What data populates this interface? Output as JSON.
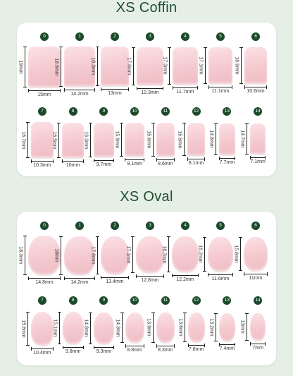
{
  "coffin": {
    "title": "XS Coffin",
    "nails": [
      {
        "num": "0",
        "h": "19mm",
        "w": "15mm"
      },
      {
        "num": "1",
        "h": "18.8mm",
        "w": "14.2mm"
      },
      {
        "num": "2",
        "h": "18.3mm",
        "w": "13mm"
      },
      {
        "num": "3",
        "h": "17.6mm",
        "w": "12.3mm"
      },
      {
        "num": "4",
        "h": "17.3mm",
        "w": "11.7mm"
      },
      {
        "num": "5",
        "h": "17.1mm",
        "w": "11.1mm"
      },
      {
        "num": "6",
        "h": "16.9mm",
        "w": "10.6mm"
      },
      {
        "num": "7",
        "h": "16.7mm",
        "w": "10.3mm"
      },
      {
        "num": "8",
        "h": "16.5mm",
        "w": "10mm"
      },
      {
        "num": "9",
        "h": "16.3mm",
        "w": "9.7mm"
      },
      {
        "num": "10",
        "h": "15.9mm",
        "w": "9.1mm"
      },
      {
        "num": "11",
        "h": "15.6mm",
        "w": "8.6mm"
      },
      {
        "num": "12",
        "h": "15.5mm",
        "w": "8.1mm"
      },
      {
        "num": "13",
        "h": "14.8mm",
        "w": "7.7mm"
      },
      {
        "num": "14",
        "h": "14.7mm",
        "w": "7.1mm"
      }
    ]
  },
  "oval": {
    "title": "XS Oval",
    "nails": [
      {
        "num": "0",
        "h": "18.3mm",
        "w": "14.8mm"
      },
      {
        "num": "1",
        "h": "18mm",
        "w": "14.2mm"
      },
      {
        "num": "2",
        "h": "17.6mm",
        "w": "13.4mm"
      },
      {
        "num": "3",
        "h": "17.1mm",
        "w": "12.8mm"
      },
      {
        "num": "4",
        "h": "16.7mm",
        "w": "12.2mm"
      },
      {
        "num": "5",
        "h": "16.2mm",
        "w": "11.6mm"
      },
      {
        "num": "6",
        "h": "15.8mm",
        "w": "11mm"
      },
      {
        "num": "7",
        "h": "15.6mm",
        "w": "10.4mm"
      },
      {
        "num": "8",
        "h": "15.1mm",
        "w": "9.8mm"
      },
      {
        "num": "9",
        "h": "14.8mm",
        "w": "9.3mm"
      },
      {
        "num": "10",
        "h": "14.3mm",
        "w": "8.8mm"
      },
      {
        "num": "11",
        "h": "13.9mm",
        "w": "8.3mm"
      },
      {
        "num": "12",
        "h": "13.6mm",
        "w": "7.8mm"
      },
      {
        "num": "13",
        "h": "13.2mm",
        "w": "7.4mm"
      },
      {
        "num": "14",
        "h": "13mm",
        "w": "7mm"
      }
    ]
  },
  "colors": {
    "background": "#e6efe6",
    "title": "#1f4d2e",
    "badge": "#1b4a2b",
    "nail": "#f4c9cf"
  }
}
